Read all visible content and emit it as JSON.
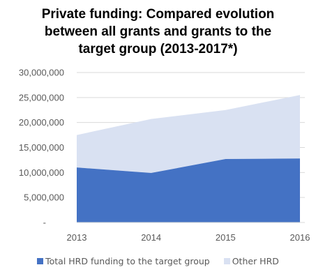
{
  "chart_data": {
    "type": "area",
    "stacked": true,
    "title_lines": [
      "Private funding: Compared evolution",
      "between all grants and grants to the",
      "target group (2013-2017*)"
    ],
    "categories": [
      "2013",
      "2014",
      "2015",
      "2016"
    ],
    "series": [
      {
        "name": "Total HRD funding to the target group",
        "values": [
          11000000,
          9900000,
          12700000,
          12800000
        ],
        "color": "#4472C4"
      },
      {
        "name": "Other HRD",
        "values": [
          6500000,
          10800000,
          9800000,
          12700000
        ],
        "color": "#D9E1F2"
      }
    ],
    "ylim": [
      0,
      30000000
    ],
    "yticks": [
      "-",
      "5,000,000",
      "10,000,000",
      "15,000,000",
      "20,000,000",
      "25,000,000",
      "30,000,000"
    ],
    "grid": true,
    "legend_position": "bottom"
  }
}
